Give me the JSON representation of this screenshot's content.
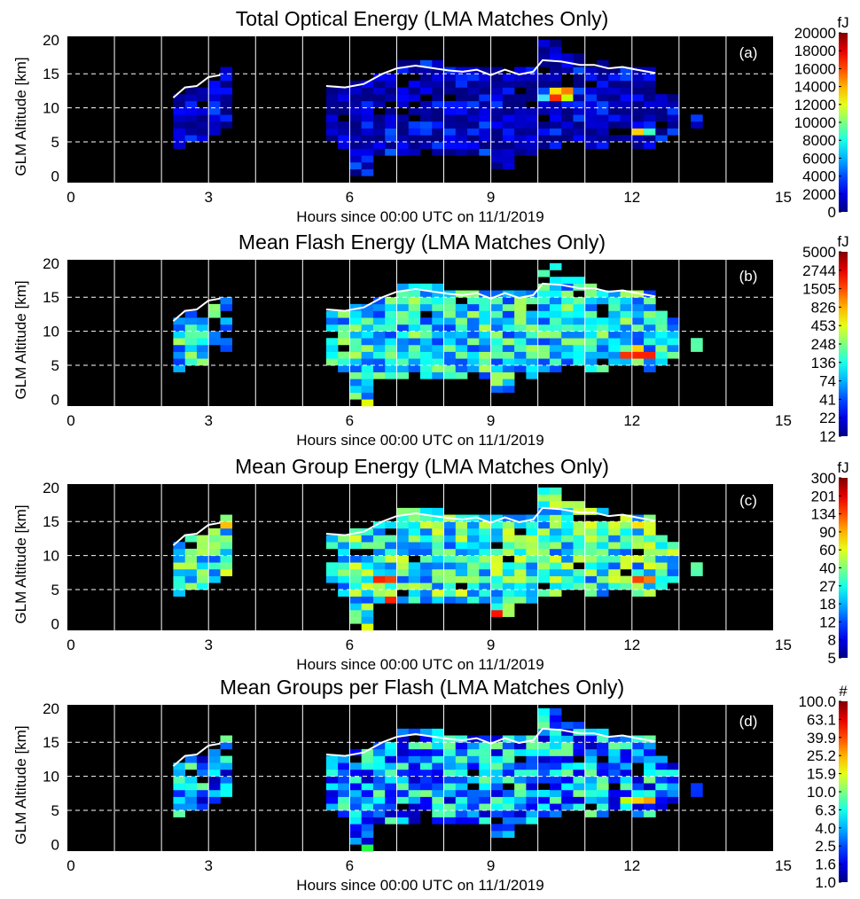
{
  "chart_data": [
    {
      "type": "heatmap",
      "title": "Total Optical Energy (LMA Matches Only)",
      "panel_label": "(a)",
      "xlabel": "Hours since 00:00 UTC on 11/1/2019",
      "ylabel": "GLM Altitude [km]",
      "xlim": [
        0,
        15
      ],
      "ylim": [
        -1,
        20.5
      ],
      "x_ticks": [
        "0",
        "3",
        "6",
        "9",
        "12",
        "15"
      ],
      "y_ticks": [
        "0",
        "5",
        "10",
        "15",
        "20"
      ],
      "vertical_grid_hours": [
        1,
        2,
        3,
        4,
        5,
        6,
        7,
        8,
        9,
        10,
        11,
        12,
        13,
        14
      ],
      "dashed_grid_km": [
        5,
        10,
        15
      ],
      "background": "#000000",
      "colorbar": {
        "unit": "fJ",
        "scale": "linear",
        "ticks": [
          "20000",
          "18000",
          "16000",
          "14000",
          "12000",
          "10000",
          "8000",
          "6000",
          "4000",
          "2000",
          "0"
        ]
      },
      "cells": {
        "0": "0000000101111110111110111111111111111101111111111011111111111111101111110111111111011",
        "1": "0000011111111101111111111011111111111111111111111111111111111111111111011111111111111111111011111",
        "2": "000000000111111111111111111111111111111111111111111111000",
        "3": "00011111111111111111111111111111111111111111111111111111111111111011111110",
        "4": "01111110111111111111011111111111111111111011111111111111111111101111111111111111111111111110"
      },
      "hotspots": [
        {
          "x_hour": 10.25,
          "alt_km": 11.5,
          "color": "#ff3000"
        },
        {
          "x_hour": 10.5,
          "alt_km": 11.5,
          "color": "#c8ff00"
        },
        {
          "x_hour": 10.25,
          "alt_km": 12.5,
          "color": "#ffe000"
        },
        {
          "x_hour": 10.5,
          "alt_km": 12.5,
          "color": "#ff8000"
        },
        {
          "x_hour": 10.0,
          "alt_km": 11.5,
          "color": "#40e0ff"
        },
        {
          "x_hour": 12.0,
          "alt_km": 6.5,
          "color": "#ffd000"
        },
        {
          "x_hour": 12.25,
          "alt_km": 6.5,
          "color": "#40ffc0"
        }
      ]
    },
    {
      "type": "heatmap",
      "title": "Mean Flash Energy (LMA Matches Only)",
      "panel_label": "(b)",
      "xlabel": "Hours since 00:00 UTC on 11/1/2019",
      "ylabel": "GLM Altitude [km]",
      "xlim": [
        0,
        15
      ],
      "ylim": [
        -1,
        20.5
      ],
      "x_ticks": [
        "0",
        "3",
        "6",
        "9",
        "12",
        "15"
      ],
      "y_ticks": [
        "0",
        "5",
        "10",
        "15",
        "20"
      ],
      "colorbar": {
        "unit": "fJ",
        "scale": "log",
        "ticks": [
          "5000",
          "2744",
          "1505",
          "826",
          "453",
          "248",
          "136",
          "74",
          "41",
          "22",
          "12"
        ]
      },
      "hotspots": [
        {
          "x_hour": 12.0,
          "alt_km": 6.5,
          "color": "#ff2000"
        },
        {
          "x_hour": 12.25,
          "alt_km": 6.5,
          "color": "#ff2000"
        },
        {
          "x_hour": 11.75,
          "alt_km": 6.5,
          "color": "#ff3000"
        },
        {
          "x_hour": 12.0,
          "alt_km": 7.5,
          "color": "#ffd000"
        },
        {
          "x_hour": 13.25,
          "alt_km": 6.5,
          "color": "#a0ff00"
        },
        {
          "x_hour": 6.25,
          "alt_km": -0.5,
          "color": "#e0ff00"
        }
      ]
    },
    {
      "type": "heatmap",
      "title": "Mean Group Energy (LMA Matches Only)",
      "panel_label": "(c)",
      "xlabel": "Hours since 00:00 UTC on 11/1/2019",
      "ylabel": "GLM Altitude [km]",
      "xlim": [
        0,
        15
      ],
      "ylim": [
        -1,
        20.5
      ],
      "x_ticks": [
        "0",
        "3",
        "6",
        "9",
        "12",
        "15"
      ],
      "y_ticks": [
        "0",
        "5",
        "10",
        "15",
        "20"
      ],
      "colorbar": {
        "unit": "fJ",
        "scale": "log",
        "ticks": [
          "300",
          "201",
          "134",
          "90",
          "60",
          "40",
          "27",
          "18",
          "12",
          "8",
          "5"
        ]
      },
      "hotspots": [
        {
          "x_hour": 6.5,
          "alt_km": 6.5,
          "color": "#ff2000"
        },
        {
          "x_hour": 6.75,
          "alt_km": 6.5,
          "color": "#ff4000"
        },
        {
          "x_hour": 6.75,
          "alt_km": 3.5,
          "color": "#ff2000"
        },
        {
          "x_hour": 9.0,
          "alt_km": 1.5,
          "color": "#ff1000"
        },
        {
          "x_hour": 12.0,
          "alt_km": 6.5,
          "color": "#ff4000"
        },
        {
          "x_hour": 12.25,
          "alt_km": 6.5,
          "color": "#ff8000"
        },
        {
          "x_hour": 13.25,
          "alt_km": 6.5,
          "color": "#ff8000"
        },
        {
          "x_hour": 3.25,
          "alt_km": 14.5,
          "color": "#ffc000"
        },
        {
          "x_hour": 12.0,
          "alt_km": 14.5,
          "color": "#ffe000"
        },
        {
          "x_hour": 6.25,
          "alt_km": -0.5,
          "color": "#e0ff00"
        }
      ]
    },
    {
      "type": "heatmap",
      "title": "Mean Groups per Flash (LMA Matches Only)",
      "panel_label": "(d)",
      "xlabel": "Hours since 00:00 UTC on 11/1/2019",
      "ylabel": "GLM Altitude [km]",
      "xlim": [
        0,
        15
      ],
      "ylim": [
        -1,
        20.5
      ],
      "x_ticks": [
        "0",
        "3",
        "6",
        "9",
        "12",
        "15"
      ],
      "y_ticks": [
        "0",
        "5",
        "10",
        "15",
        "20"
      ],
      "colorbar": {
        "unit": "#",
        "scale": "log",
        "ticks": [
          "100.0",
          "63.1",
          "39.9",
          "25.2",
          "15.9",
          "10.0",
          "6.3",
          "4.0",
          "2.5",
          "1.6",
          "1.0"
        ]
      },
      "hotspots": [
        {
          "x_hour": 12.0,
          "alt_km": 6.5,
          "color": "#ffd000"
        },
        {
          "x_hour": 12.25,
          "alt_km": 6.5,
          "color": "#ffa000"
        },
        {
          "x_hour": 11.75,
          "alt_km": 6.5,
          "color": "#c0ff00"
        },
        {
          "x_hour": 6.25,
          "alt_km": -0.5,
          "color": "#20ff40"
        },
        {
          "x_hour": 5.5,
          "alt_km": 13.5,
          "color": "#20ff60"
        }
      ]
    }
  ],
  "shared": {
    "overlay_line": {
      "segment1": [
        [
          2.25,
          11.5
        ],
        [
          2.5,
          13
        ],
        [
          2.75,
          13.2
        ],
        [
          3.0,
          14.5
        ],
        [
          3.25,
          14.8
        ]
      ],
      "segment2": [
        [
          5.5,
          13.2
        ],
        [
          5.9,
          13.0
        ],
        [
          6.3,
          13.5
        ],
        [
          6.7,
          15.0
        ],
        [
          7.0,
          15.8
        ],
        [
          7.4,
          16.2
        ],
        [
          7.8,
          15.8
        ],
        [
          8.1,
          15.5
        ],
        [
          8.4,
          15.3
        ],
        [
          8.7,
          15.6
        ],
        [
          9.0,
          14.8
        ],
        [
          9.3,
          15.6
        ],
        [
          9.6,
          14.9
        ],
        [
          9.9,
          15.3
        ],
        [
          10.1,
          17.0
        ],
        [
          10.5,
          16.8
        ],
        [
          10.9,
          16.3
        ],
        [
          11.2,
          16.3
        ],
        [
          11.5,
          15.8
        ],
        [
          11.8,
          16.0
        ],
        [
          12.1,
          15.6
        ],
        [
          12.5,
          15.1
        ]
      ]
    }
  }
}
